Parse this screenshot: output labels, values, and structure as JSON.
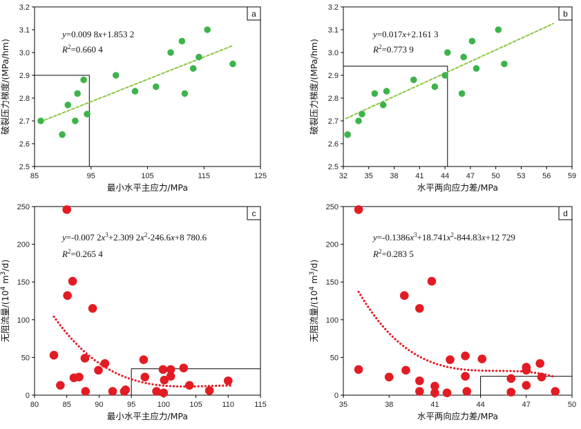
{
  "colors": {
    "green": "#3cb44a",
    "green_trend": "#8cc63f",
    "red": "#e31b23",
    "red_trend": "#e31b23"
  },
  "chart_data": [
    {
      "panel": "a",
      "type": "scatter",
      "xlabel": "最小水平主应力/MPa",
      "ylabel": "破裂压力梯度/(MPa/hm)",
      "xlim": [
        85,
        125
      ],
      "ylim": [
        2.5,
        3.2
      ],
      "xticks": [
        85,
        95,
        105,
        115,
        125
      ],
      "yticks": [
        2.5,
        2.6,
        2.7,
        2.8,
        2.9,
        3.0,
        3.1,
        3.2
      ],
      "ytick_labels": [
        "2.5",
        "2.6",
        "2.7",
        "2.8",
        "2.9",
        "3.0",
        "3.1",
        "3.2"
      ],
      "equation": {
        "y_var": "y",
        "y_rest": "=0.009 8",
        "x_var": "x",
        "x_rest": "+1.853 2"
      },
      "r2": {
        "r": "R",
        "exp": "2",
        "rest": "=0.660 4"
      },
      "trend": {
        "type": "linear",
        "slope": 0.0098,
        "intercept": 1.8532,
        "x_range": [
          86,
          120
        ]
      },
      "highlight_box": {
        "x": [
          85,
          94.7
        ],
        "y": [
          2.5,
          2.9
        ]
      },
      "x": [
        86.1,
        89.9,
        90.9,
        92.2,
        92.6,
        93.7,
        94.3,
        99.4,
        102.8,
        106.5,
        109.1,
        111.1,
        111.6,
        113.1,
        114.1,
        115.6,
        120.1
      ],
      "y": [
        2.7,
        2.64,
        2.77,
        2.7,
        2.82,
        2.88,
        2.73,
        2.9,
        2.83,
        2.85,
        3.0,
        3.05,
        2.82,
        2.93,
        2.98,
        3.1,
        2.95
      ]
    },
    {
      "panel": "b",
      "type": "scatter",
      "xlabel": "水平两向应力差/MPa",
      "ylabel": "破裂压力梯度/(MPa/hm)",
      "xlim": [
        32,
        59
      ],
      "ylim": [
        2.5,
        3.2
      ],
      "xticks": [
        32,
        35,
        38,
        41,
        44,
        47,
        50,
        53,
        56,
        59
      ],
      "yticks": [
        2.5,
        2.6,
        2.7,
        2.8,
        2.9,
        3.0,
        3.1,
        3.2
      ],
      "ytick_labels": [
        "2.5",
        "2.6",
        "2.7",
        "2.8",
        "2.9",
        "3.0",
        "3.1",
        "3.2"
      ],
      "equation": {
        "y_var": "y",
        "y_rest": "=0.017",
        "x_var": "x",
        "x_rest": "+2.161 3"
      },
      "r2": {
        "r": "R",
        "exp": "2",
        "rest": "=0.773 9"
      },
      "trend": {
        "type": "linear",
        "slope": 0.017,
        "intercept": 2.1613,
        "x_range": [
          32.3,
          56.8
        ]
      },
      "highlight_box": {
        "x": [
          32,
          44.3
        ],
        "y": [
          2.5,
          2.94
        ]
      },
      "x": [
        32.5,
        33.8,
        34.2,
        35.7,
        36.7,
        37.1,
        40.3,
        42.8,
        44.0,
        44.3,
        46.0,
        46.2,
        47.2,
        47.7,
        50.3,
        51.0
      ],
      "y": [
        2.64,
        2.7,
        2.73,
        2.82,
        2.77,
        2.83,
        2.88,
        2.85,
        2.9,
        3.0,
        2.82,
        2.98,
        3.05,
        2.93,
        3.1,
        2.95
      ]
    },
    {
      "panel": "c",
      "type": "scatter",
      "xlabel": "最小水平主应力/MPa",
      "ylabel_parts": {
        "pre": "无阻流量/(10",
        "sup1": "4",
        "mid": " m",
        "sup2": "3",
        "post": "/d)"
      },
      "xlim": [
        80,
        115
      ],
      "ylim": [
        0,
        250
      ],
      "xticks": [
        80,
        85,
        90,
        95,
        100,
        105,
        110,
        115
      ],
      "yticks": [
        0,
        50,
        100,
        150,
        200,
        250
      ],
      "ytick_labels": [
        "0",
        "50",
        "100",
        "150",
        "200",
        "250"
      ],
      "equation": {
        "y_var": "y",
        "parts": [
          "=-0.007 2",
          "x",
          "3",
          "+2.309 2",
          "x",
          "2",
          "-246.6",
          "x",
          "",
          "+8 780.6"
        ]
      },
      "r2": {
        "r": "R",
        "exp": "2",
        "rest": "=0.265 4"
      },
      "trend": {
        "type": "poly3",
        "coef": [
          -0.0072,
          2.3092,
          -246.6,
          8780.6
        ],
        "x_range": [
          83,
          110.3
        ]
      },
      "highlight_box": {
        "x": [
          95,
          115
        ],
        "y": [
          0,
          35
        ]
      },
      "x": [
        83.0,
        84.0,
        85.0,
        85.1,
        85.9,
        86.1,
        86.9,
        87.8,
        87.9,
        89.0,
        89.9,
        90.9,
        92.1,
        93.9,
        94.1,
        96.9,
        97.1,
        98.9,
        99.9,
        100.0,
        100.1,
        101.1,
        101.1,
        103.1,
        104.0,
        107.1,
        110.0
      ],
      "y": [
        53,
        13,
        246,
        132,
        151,
        23,
        24,
        49,
        5,
        115,
        33,
        42,
        5,
        5,
        7,
        47,
        24,
        5,
        34,
        3,
        20,
        34,
        25,
        36,
        13,
        6,
        19
      ]
    },
    {
      "panel": "d",
      "type": "scatter",
      "xlabel": "水平两向应力差/MPa",
      "ylabel_parts": {
        "pre": "无阻流量/(10",
        "sup1": "4",
        "mid": " m",
        "sup2": "3",
        "post": "/d)"
      },
      "xlim": [
        35,
        50
      ],
      "ylim": [
        0,
        250
      ],
      "xticks": [
        35,
        38,
        41,
        44,
        47,
        50
      ],
      "yticks": [
        0,
        50,
        100,
        150,
        200,
        250
      ],
      "ytick_labels": [
        "0",
        "50",
        "100",
        "150",
        "200",
        "250"
      ],
      "equation": {
        "y_var": "y",
        "parts": [
          "=-0.1386",
          "x",
          "3",
          "+18.741",
          "x",
          "2",
          "-844.83",
          "x",
          "",
          "+12 729"
        ]
      },
      "r2": {
        "r": "R",
        "exp": "2",
        "rest": "=0.283 5"
      },
      "trend": {
        "type": "poly3",
        "coef": [
          -0.1386,
          18.741,
          -844.83,
          12729
        ],
        "x_range": [
          36,
          48.8
        ]
      },
      "highlight_box": {
        "x": [
          44,
          50
        ],
        "y": [
          0,
          25
        ]
      },
      "x": [
        36.0,
        36.0,
        38.0,
        39.0,
        39.1,
        40.0,
        40.0,
        40.0,
        40.8,
        41.0,
        41.0,
        41.8,
        42.0,
        43.0,
        43.0,
        43.1,
        44.1,
        46.0,
        46.0,
        47.0,
        47.0,
        47.0,
        47.9,
        48.0,
        48.9
      ],
      "y": [
        246,
        34,
        24,
        132,
        33,
        115,
        19,
        5,
        151,
        3,
        12,
        3,
        47,
        52,
        25,
        5,
        48,
        4,
        22,
        13,
        37,
        33,
        42,
        24,
        5
      ]
    }
  ]
}
